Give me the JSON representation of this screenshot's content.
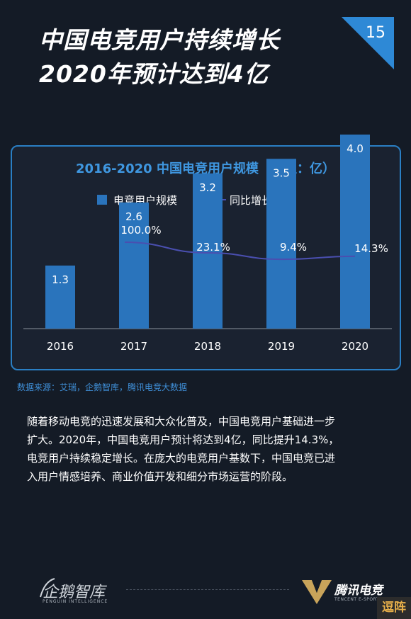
{
  "header": {
    "title_line1": "中国电竞用户持续增长",
    "title_line2": "2020年预计达到4亿",
    "page_number": "15"
  },
  "chart": {
    "title": "2016-2020 中国电竞用户规模（单位：亿）"
  },
  "chart_data": {
    "type": "bar",
    "title": "2016-2020 中国电竞用户规模（单位：亿）",
    "categories": [
      "2016",
      "2017",
      "2018",
      "2019",
      "2020"
    ],
    "series": [
      {
        "name": "电竞用户规模",
        "type": "bar",
        "values": [
          1.3,
          2.6,
          3.2,
          3.5,
          4.0
        ],
        "labels": [
          "1.3",
          "2.6",
          "3.2",
          "3.5",
          "4.0"
        ]
      },
      {
        "name": "同比增长率",
        "type": "line",
        "values": [
          null,
          100.0,
          23.1,
          9.4,
          14.3
        ],
        "labels": [
          "",
          "100.0%",
          "23.1%",
          "9.4%",
          "14.3%"
        ]
      }
    ],
    "legend_position": "top",
    "grid": false,
    "colors": {
      "bar": "#2a74bc",
      "line": "#4a4fb0"
    }
  },
  "source": "数据来源：艾瑞，企鹅智库，腾讯电竞大数据",
  "body": {
    "line1": "随着移动电竞的迅速发展和大众化普及，中国电竞用户基础进一步",
    "line2": "扩大。2020年，中国电竞用户预计将达到4亿，同比提升14.3%，",
    "line3": "电竞用户持续稳定增长。在庞大的电竞用户基数下，中国电竞已进",
    "line4": "入用户情感培养、商业价值开发和细分市场运营的阶段。"
  },
  "footer": {
    "left_brand": "企鹅智库",
    "left_sub": "PENGUIN INTELLIGENCE",
    "right_brand": "腾讯电竞",
    "right_sub": "TENCENT E-SPORTS"
  },
  "watermark": "逗阵"
}
